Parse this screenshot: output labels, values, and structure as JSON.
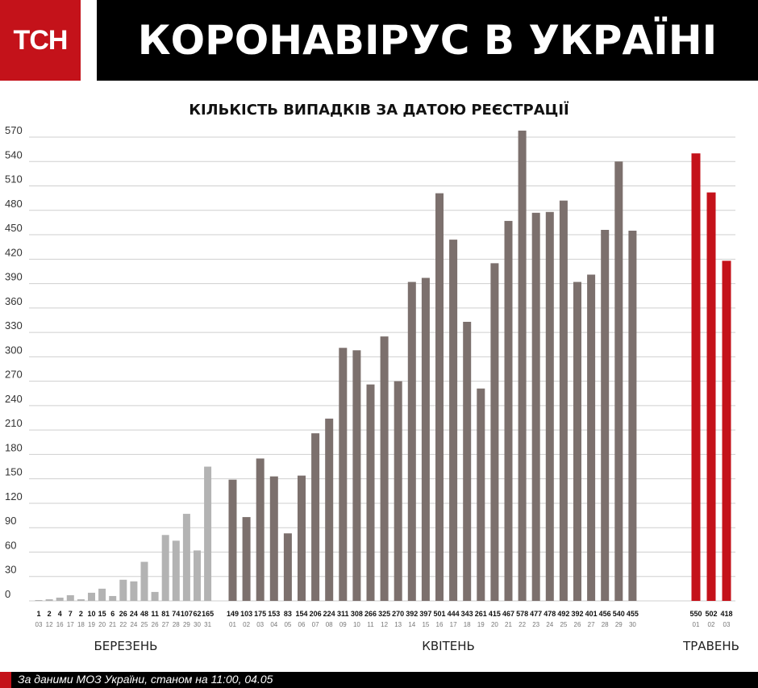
{
  "header": {
    "logo_text": "ТСН",
    "title": "КОРОНАВІРУС В УКРАЇНІ"
  },
  "footer": {
    "text": "За даними МОЗ України, станом на 11:00, 04.05"
  },
  "colors": {
    "brand_red": "#c4121a",
    "march_bars": "#b3b3b3",
    "april_bars": "#7c706d",
    "may_bars": "#c4121a",
    "grid": "#cfcfcf"
  },
  "chart_data": {
    "type": "bar",
    "title": "КІЛЬКІСТЬ ВИПАДКІВ ЗА ДАТОЮ РЕЄСТРАЦІЇ",
    "xlabel": "",
    "ylabel": "",
    "ylim": [
      0,
      570
    ],
    "yticks": [
      0,
      30,
      60,
      90,
      120,
      150,
      180,
      210,
      240,
      270,
      300,
      330,
      360,
      390,
      420,
      450,
      480,
      510,
      540,
      570
    ],
    "grid": true,
    "groups": [
      {
        "name": "БЕРЕЗЕНЬ",
        "color": "#b3b3b3",
        "categories": [
          "03",
          "12",
          "16",
          "17",
          "18",
          "19",
          "20",
          "21",
          "22",
          "24",
          "25",
          "26",
          "27",
          "28",
          "29",
          "30",
          "31"
        ],
        "values": [
          1,
          2,
          4,
          7,
          2,
          10,
          15,
          6,
          26,
          24,
          48,
          11,
          81,
          74,
          107,
          62,
          165
        ]
      },
      {
        "name": "КВІТЕНЬ",
        "color": "#7c706d",
        "categories": [
          "01",
          "02",
          "03",
          "04",
          "05",
          "06",
          "07",
          "08",
          "09",
          "10",
          "11",
          "12",
          "13",
          "14",
          "15",
          "16",
          "17",
          "18",
          "19",
          "20",
          "21",
          "22",
          "23",
          "24",
          "25",
          "26",
          "27",
          "28",
          "29",
          "30"
        ],
        "values": [
          149,
          103,
          175,
          153,
          83,
          154,
          206,
          224,
          311,
          308,
          266,
          325,
          270,
          392,
          397,
          501,
          444,
          343,
          261,
          415,
          467,
          578,
          477,
          478,
          492,
          392,
          401,
          456,
          540,
          455
        ]
      },
      {
        "name": "ТРАВЕНЬ",
        "color": "#c4121a",
        "categories": [
          "01",
          "02",
          "03"
        ],
        "values": [
          550,
          502,
          418
        ]
      }
    ]
  }
}
